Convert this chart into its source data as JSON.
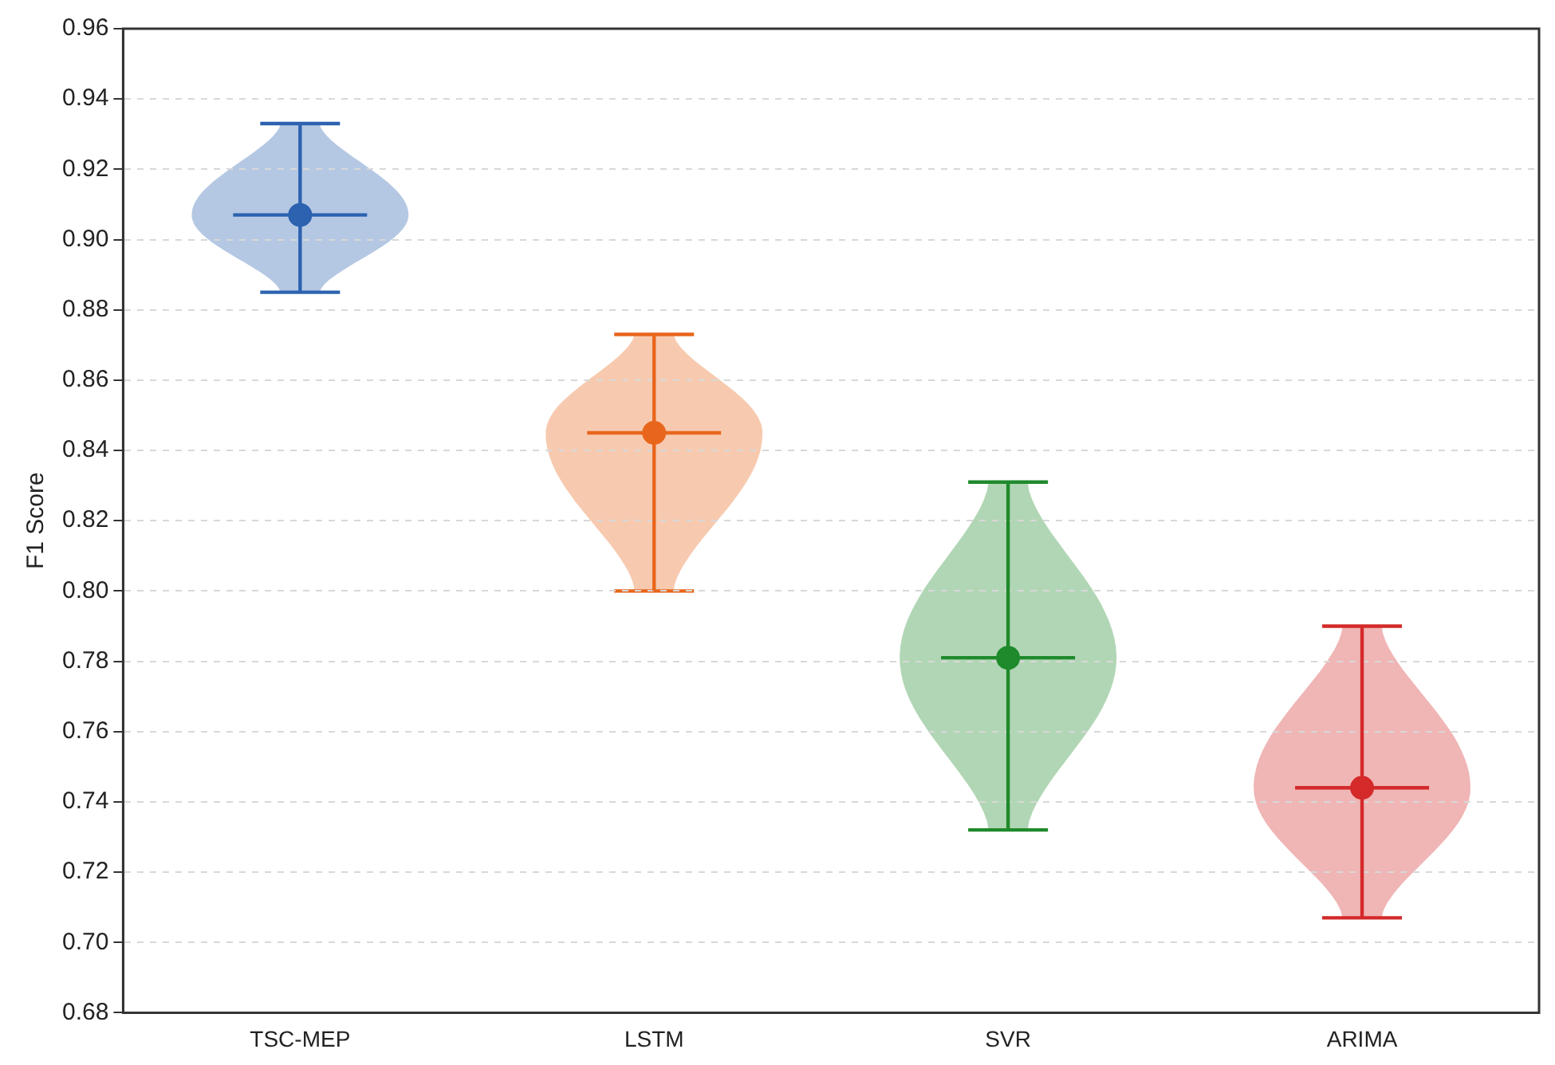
{
  "chart_data": {
    "type": "scatter",
    "ylabel": "F1 Score",
    "categories": [
      "TSC-MEP",
      "LSTM",
      "SVR",
      "ARIMA"
    ],
    "values": [
      0.907,
      0.845,
      0.781,
      0.744
    ],
    "errors": [
      [
        0.885,
        0.933
      ],
      [
        0.8,
        0.873
      ],
      [
        0.732,
        0.831
      ],
      [
        0.707,
        0.79
      ]
    ],
    "colors": [
      "#2c62b0",
      "#e8661c",
      "#1f8a2c",
      "#d42a2a"
    ],
    "ylim": [
      0.68,
      0.96
    ],
    "yticks": [
      {
        "value": 0.68,
        "label": "0.68"
      },
      {
        "value": 0.7,
        "label": "0.70"
      },
      {
        "value": 0.72,
        "label": "0.72"
      },
      {
        "value": 0.74,
        "label": "0.74"
      },
      {
        "value": 0.76,
        "label": "0.76"
      },
      {
        "value": 0.78,
        "label": "0.78"
      },
      {
        "value": 0.8,
        "label": "0.80"
      },
      {
        "value": 0.82,
        "label": "0.82"
      },
      {
        "value": 0.84,
        "label": "0.84"
      },
      {
        "value": 0.86,
        "label": "0.86"
      },
      {
        "value": 0.88,
        "label": "0.88"
      },
      {
        "value": 0.9,
        "label": "0.90"
      },
      {
        "value": 0.92,
        "label": "0.92"
      },
      {
        "value": 0.94,
        "label": "0.94"
      },
      {
        "value": 0.96,
        "label": "0.96"
      }
    ],
    "grid": "y",
    "marker": "circle"
  }
}
